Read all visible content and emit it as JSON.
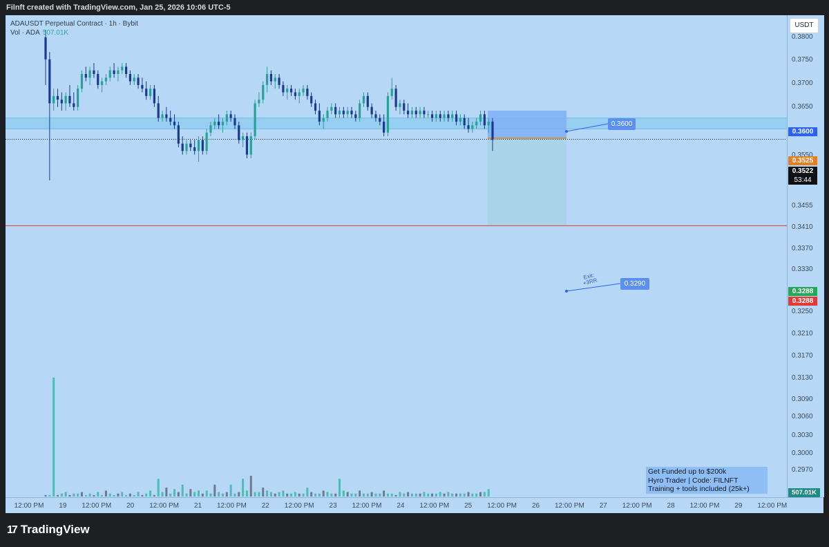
{
  "header": {
    "credit": "Filnft created with TradingView.com, Jan 25, 2026 10:06 UTC-5"
  },
  "legend": {
    "symbol_line": "ADAUSDT Perpetual Contract · 1h · Bybit",
    "volume_label": "Vol · ADA",
    "volume_value": "507.01K"
  },
  "currency_button": "USDT",
  "price_badges": {
    "target_level": "0.3600",
    "entry_level": "0.3525",
    "last_price": "0.3522",
    "countdown": "53:44",
    "stop_green": "0.3288",
    "stop_red": "0.3288"
  },
  "callouts": {
    "top": "0.3600",
    "bottom": "0.3290",
    "exit_line1": "Exit:",
    "exit_line2": "+3RR"
  },
  "promo": {
    "line1": "Get Funded up to $200k",
    "line2": "Hyro Trader | Code: FILNFT",
    "line3": "Training + tools included (25k+)"
  },
  "volume_badge": "507.01K",
  "brand": {
    "name": "TradingView",
    "logo_glyph": "17"
  },
  "colors": {
    "chart_bg": "#b7d7f7",
    "bull_candle": "#2aa198",
    "bear_candle": "#1a3a8c",
    "position_target_zone": "#7eb0f5",
    "position_stop_zone": "#a8d3e6",
    "stop_line": "#e53935",
    "entry_line": "#e67e22",
    "zone_band": "#8ccbf0"
  },
  "chart_data": {
    "type": "candlestick",
    "symbol": "ADAUSDT",
    "interval": "1h",
    "price_ticks": [
      "0.3800",
      "0.3750",
      "0.3700",
      "0.3650",
      "0.3550",
      "0.3455",
      "0.3410",
      "0.3370",
      "0.3330",
      "0.3250",
      "0.3210",
      "0.3170",
      "0.3130",
      "0.3090",
      "0.3060",
      "0.3030",
      "0.3000",
      "0.2970"
    ],
    "time_labels": [
      "12:00 PM",
      "19",
      "12:00 PM",
      "20",
      "12:00 PM",
      "21",
      "12:00 PM",
      "22",
      "12:00 PM",
      "23",
      "12:00 PM",
      "24",
      "12:00 PM",
      "25",
      "12:00 PM",
      "26",
      "12:00 PM",
      "27",
      "12:00 PM",
      "28",
      "12:00 PM",
      "29",
      "12:00 PM"
    ],
    "price_range": [
      0.294,
      0.383
    ],
    "last_price": 0.3522,
    "position": {
      "side": "short",
      "entry": 0.3525,
      "stop": 0.36,
      "target": 0.3288
    },
    "resistance_zone": [
      0.355,
      0.358
    ],
    "candles_ohlc": [
      [
        0.38,
        0.382,
        0.367,
        0.374
      ],
      [
        0.374,
        0.376,
        0.341,
        0.362
      ],
      [
        0.362,
        0.366,
        0.36,
        0.364
      ],
      [
        0.364,
        0.366,
        0.361,
        0.363
      ],
      [
        0.363,
        0.365,
        0.36,
        0.362
      ],
      [
        0.362,
        0.365,
        0.36,
        0.364
      ],
      [
        0.364,
        0.367,
        0.361,
        0.362
      ],
      [
        0.362,
        0.365,
        0.36,
        0.361
      ],
      [
        0.361,
        0.367,
        0.36,
        0.366
      ],
      [
        0.366,
        0.371,
        0.365,
        0.37
      ],
      [
        0.37,
        0.372,
        0.368,
        0.369
      ],
      [
        0.369,
        0.372,
        0.367,
        0.371
      ],
      [
        0.371,
        0.373,
        0.369,
        0.37
      ],
      [
        0.37,
        0.371,
        0.366,
        0.367
      ],
      [
        0.367,
        0.369,
        0.365,
        0.368
      ],
      [
        0.368,
        0.37,
        0.367,
        0.369
      ],
      [
        0.369,
        0.372,
        0.368,
        0.371
      ],
      [
        0.371,
        0.373,
        0.369,
        0.37
      ],
      [
        0.37,
        0.372,
        0.368,
        0.371
      ],
      [
        0.371,
        0.373,
        0.37,
        0.372
      ],
      [
        0.372,
        0.373,
        0.369,
        0.37
      ],
      [
        0.37,
        0.371,
        0.367,
        0.368
      ],
      [
        0.368,
        0.37,
        0.367,
        0.369
      ],
      [
        0.369,
        0.37,
        0.366,
        0.367
      ],
      [
        0.367,
        0.369,
        0.365,
        0.366
      ],
      [
        0.366,
        0.368,
        0.363,
        0.364
      ],
      [
        0.364,
        0.367,
        0.363,
        0.366
      ],
      [
        0.366,
        0.367,
        0.361,
        0.362
      ],
      [
        0.362,
        0.364,
        0.357,
        0.358
      ],
      [
        0.358,
        0.36,
        0.357,
        0.359
      ],
      [
        0.359,
        0.361,
        0.357,
        0.358
      ],
      [
        0.358,
        0.36,
        0.356,
        0.357
      ],
      [
        0.357,
        0.359,
        0.355,
        0.356
      ],
      [
        0.356,
        0.357,
        0.35,
        0.351
      ],
      [
        0.351,
        0.353,
        0.348,
        0.349
      ],
      [
        0.349,
        0.352,
        0.348,
        0.351
      ],
      [
        0.351,
        0.352,
        0.349,
        0.35
      ],
      [
        0.35,
        0.352,
        0.348,
        0.349
      ],
      [
        0.349,
        0.353,
        0.346,
        0.352
      ],
      [
        0.352,
        0.353,
        0.348,
        0.349
      ],
      [
        0.349,
        0.355,
        0.348,
        0.354
      ],
      [
        0.354,
        0.357,
        0.353,
        0.356
      ],
      [
        0.356,
        0.358,
        0.355,
        0.357
      ],
      [
        0.357,
        0.359,
        0.355,
        0.356
      ],
      [
        0.356,
        0.358,
        0.354,
        0.357
      ],
      [
        0.357,
        0.36,
        0.356,
        0.359
      ],
      [
        0.359,
        0.36,
        0.357,
        0.358
      ],
      [
        0.358,
        0.359,
        0.355,
        0.356
      ],
      [
        0.356,
        0.357,
        0.351,
        0.352
      ],
      [
        0.352,
        0.354,
        0.35,
        0.353
      ],
      [
        0.353,
        0.354,
        0.347,
        0.348
      ],
      [
        0.348,
        0.354,
        0.347,
        0.353
      ],
      [
        0.353,
        0.363,
        0.352,
        0.362
      ],
      [
        0.362,
        0.365,
        0.361,
        0.363
      ],
      [
        0.363,
        0.368,
        0.362,
        0.367
      ],
      [
        0.367,
        0.372,
        0.365,
        0.37
      ],
      [
        0.37,
        0.371,
        0.367,
        0.368
      ],
      [
        0.368,
        0.37,
        0.366,
        0.369
      ],
      [
        0.369,
        0.37,
        0.366,
        0.367
      ],
      [
        0.367,
        0.368,
        0.364,
        0.365
      ],
      [
        0.365,
        0.367,
        0.363,
        0.366
      ],
      [
        0.366,
        0.367,
        0.364,
        0.365
      ],
      [
        0.365,
        0.366,
        0.363,
        0.364
      ],
      [
        0.364,
        0.366,
        0.362,
        0.365
      ],
      [
        0.365,
        0.367,
        0.364,
        0.366
      ],
      [
        0.366,
        0.367,
        0.363,
        0.364
      ],
      [
        0.364,
        0.365,
        0.361,
        0.362
      ],
      [
        0.362,
        0.363,
        0.359,
        0.36
      ],
      [
        0.36,
        0.362,
        0.356,
        0.357
      ],
      [
        0.357,
        0.359,
        0.355,
        0.358
      ],
      [
        0.358,
        0.361,
        0.357,
        0.36
      ],
      [
        0.36,
        0.362,
        0.359,
        0.361
      ],
      [
        0.361,
        0.362,
        0.358,
        0.359
      ],
      [
        0.359,
        0.361,
        0.358,
        0.36
      ],
      [
        0.36,
        0.361,
        0.358,
        0.359
      ],
      [
        0.359,
        0.361,
        0.358,
        0.36
      ],
      [
        0.36,
        0.361,
        0.358,
        0.359
      ],
      [
        0.359,
        0.36,
        0.357,
        0.358
      ],
      [
        0.358,
        0.363,
        0.357,
        0.362
      ],
      [
        0.362,
        0.365,
        0.361,
        0.364
      ],
      [
        0.364,
        0.365,
        0.36,
        0.361
      ],
      [
        0.361,
        0.362,
        0.358,
        0.359
      ],
      [
        0.359,
        0.36,
        0.357,
        0.358
      ],
      [
        0.358,
        0.359,
        0.356,
        0.357
      ],
      [
        0.357,
        0.359,
        0.353,
        0.354
      ],
      [
        0.354,
        0.365,
        0.353,
        0.364
      ],
      [
        0.364,
        0.369,
        0.363,
        0.366
      ],
      [
        0.366,
        0.367,
        0.36,
        0.361
      ],
      [
        0.361,
        0.363,
        0.359,
        0.362
      ],
      [
        0.362,
        0.363,
        0.359,
        0.36
      ],
      [
        0.36,
        0.362,
        0.358,
        0.359
      ],
      [
        0.359,
        0.361,
        0.358,
        0.36
      ],
      [
        0.36,
        0.361,
        0.358,
        0.359
      ],
      [
        0.359,
        0.361,
        0.358,
        0.36
      ],
      [
        0.36,
        0.361,
        0.358,
        0.359
      ],
      [
        0.359,
        0.36,
        0.358,
        0.359
      ],
      [
        0.359,
        0.36,
        0.357,
        0.358
      ],
      [
        0.358,
        0.36,
        0.357,
        0.359
      ],
      [
        0.359,
        0.36,
        0.357,
        0.358
      ],
      [
        0.358,
        0.36,
        0.357,
        0.359
      ],
      [
        0.359,
        0.36,
        0.357,
        0.358
      ],
      [
        0.358,
        0.36,
        0.357,
        0.359
      ],
      [
        0.359,
        0.36,
        0.356,
        0.357
      ],
      [
        0.357,
        0.359,
        0.356,
        0.358
      ],
      [
        0.358,
        0.359,
        0.355,
        0.356
      ],
      [
        0.356,
        0.358,
        0.354,
        0.355
      ],
      [
        0.355,
        0.357,
        0.354,
        0.356
      ],
      [
        0.356,
        0.358,
        0.355,
        0.357
      ],
      [
        0.357,
        0.36,
        0.356,
        0.359
      ],
      [
        0.359,
        0.36,
        0.355,
        0.356
      ],
      [
        0.356,
        0.358,
        0.354,
        0.357
      ],
      [
        0.357,
        0.358,
        0.349,
        0.352
      ]
    ],
    "volume": [
      1,
      1,
      22,
      1,
      2,
      3,
      1,
      2,
      2,
      3,
      1,
      2,
      1,
      3,
      1,
      4,
      2,
      1,
      2,
      3,
      1,
      2,
      1,
      3,
      1,
      2,
      4,
      1,
      12,
      3,
      6,
      2,
      5,
      3,
      8,
      2,
      5,
      3,
      4,
      2,
      4,
      2,
      8,
      3,
      2,
      3,
      8,
      2,
      3,
      12,
      4,
      14,
      3,
      3,
      6,
      4,
      3,
      2,
      3,
      4,
      2,
      2,
      3,
      2,
      2,
      6,
      3,
      2,
      2,
      4,
      3,
      2,
      2,
      12,
      4,
      3,
      2,
      2,
      4,
      2,
      2,
      3,
      2,
      2,
      4,
      2,
      2,
      1,
      3,
      2,
      3,
      2,
      2,
      2,
      3,
      2,
      2,
      2,
      3,
      2,
      3,
      2,
      2,
      2,
      2,
      3,
      2,
      2,
      3,
      3,
      5
    ],
    "volume_spike_index": 2
  }
}
